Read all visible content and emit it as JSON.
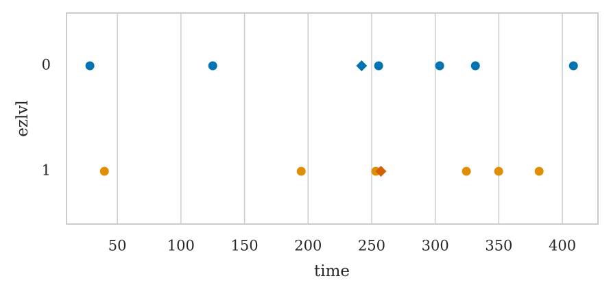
{
  "chart_data": {
    "type": "strip",
    "xlabel": "time",
    "ylabel": "ezlvl",
    "categories": [
      "0",
      "1"
    ],
    "groups": [
      {
        "values": [
          28.4,
          125,
          255.5,
          303.5,
          331.6,
          408.7
        ],
        "color": "#0173b2",
        "mean": 242.1,
        "mean_color": "#0173b2"
      },
      {
        "values": [
          39.8,
          194.6,
          253.3,
          324.5,
          349.9,
          381.7
        ],
        "color": "#de8f05",
        "mean": 257.3,
        "mean_color": "#d55e00"
      }
    ],
    "xlim": [
      10,
      428
    ],
    "xticks": [
      50,
      100,
      150,
      200,
      250,
      300,
      350,
      400
    ],
    "grid": true
  }
}
